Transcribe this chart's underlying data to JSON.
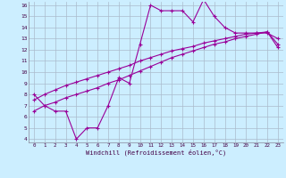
{
  "xlabel": "Windchill (Refroidissement éolien,°C)",
  "background_color": "#cceeff",
  "line_color": "#990099",
  "grid_color": "#aabbcc",
  "xlim": [
    -0.5,
    23.5
  ],
  "ylim": [
    3.7,
    16.3
  ],
  "xticks": [
    0,
    1,
    2,
    3,
    4,
    5,
    6,
    7,
    8,
    9,
    10,
    11,
    12,
    13,
    14,
    15,
    16,
    17,
    18,
    19,
    20,
    21,
    22,
    23
  ],
  "yticks": [
    4,
    5,
    6,
    7,
    8,
    9,
    10,
    11,
    12,
    13,
    14,
    15,
    16
  ],
  "line1_x": [
    0,
    1,
    2,
    3,
    4,
    5,
    6,
    7,
    8,
    9,
    10,
    11,
    12,
    13,
    14,
    15,
    16,
    17,
    18,
    19,
    20,
    21,
    22,
    23
  ],
  "line1_y": [
    8.0,
    7.0,
    6.5,
    6.5,
    4.0,
    5.0,
    5.0,
    7.0,
    9.5,
    9.0,
    12.5,
    16.0,
    15.5,
    15.5,
    15.5,
    14.5,
    16.5,
    15.0,
    14.0,
    13.5,
    13.5,
    13.5,
    13.5,
    13.0
  ],
  "line2_x": [
    0,
    1,
    2,
    3,
    4,
    5,
    6,
    7,
    8,
    9,
    10,
    11,
    12,
    13,
    14,
    15,
    16,
    17,
    18,
    19,
    20,
    21,
    22,
    23
  ],
  "line2_y": [
    7.5,
    8.0,
    8.4,
    8.8,
    9.1,
    9.4,
    9.7,
    10.0,
    10.3,
    10.6,
    11.0,
    11.3,
    11.6,
    11.9,
    12.1,
    12.3,
    12.6,
    12.8,
    13.0,
    13.2,
    13.4,
    13.5,
    13.6,
    12.5
  ],
  "line3_x": [
    0,
    1,
    2,
    3,
    4,
    5,
    6,
    7,
    8,
    9,
    10,
    11,
    12,
    13,
    14,
    15,
    16,
    17,
    18,
    19,
    20,
    21,
    22,
    23
  ],
  "line3_y": [
    6.5,
    7.0,
    7.3,
    7.7,
    8.0,
    8.3,
    8.6,
    9.0,
    9.3,
    9.7,
    10.1,
    10.5,
    10.9,
    11.3,
    11.6,
    11.9,
    12.2,
    12.5,
    12.7,
    13.0,
    13.2,
    13.4,
    13.6,
    12.2
  ]
}
